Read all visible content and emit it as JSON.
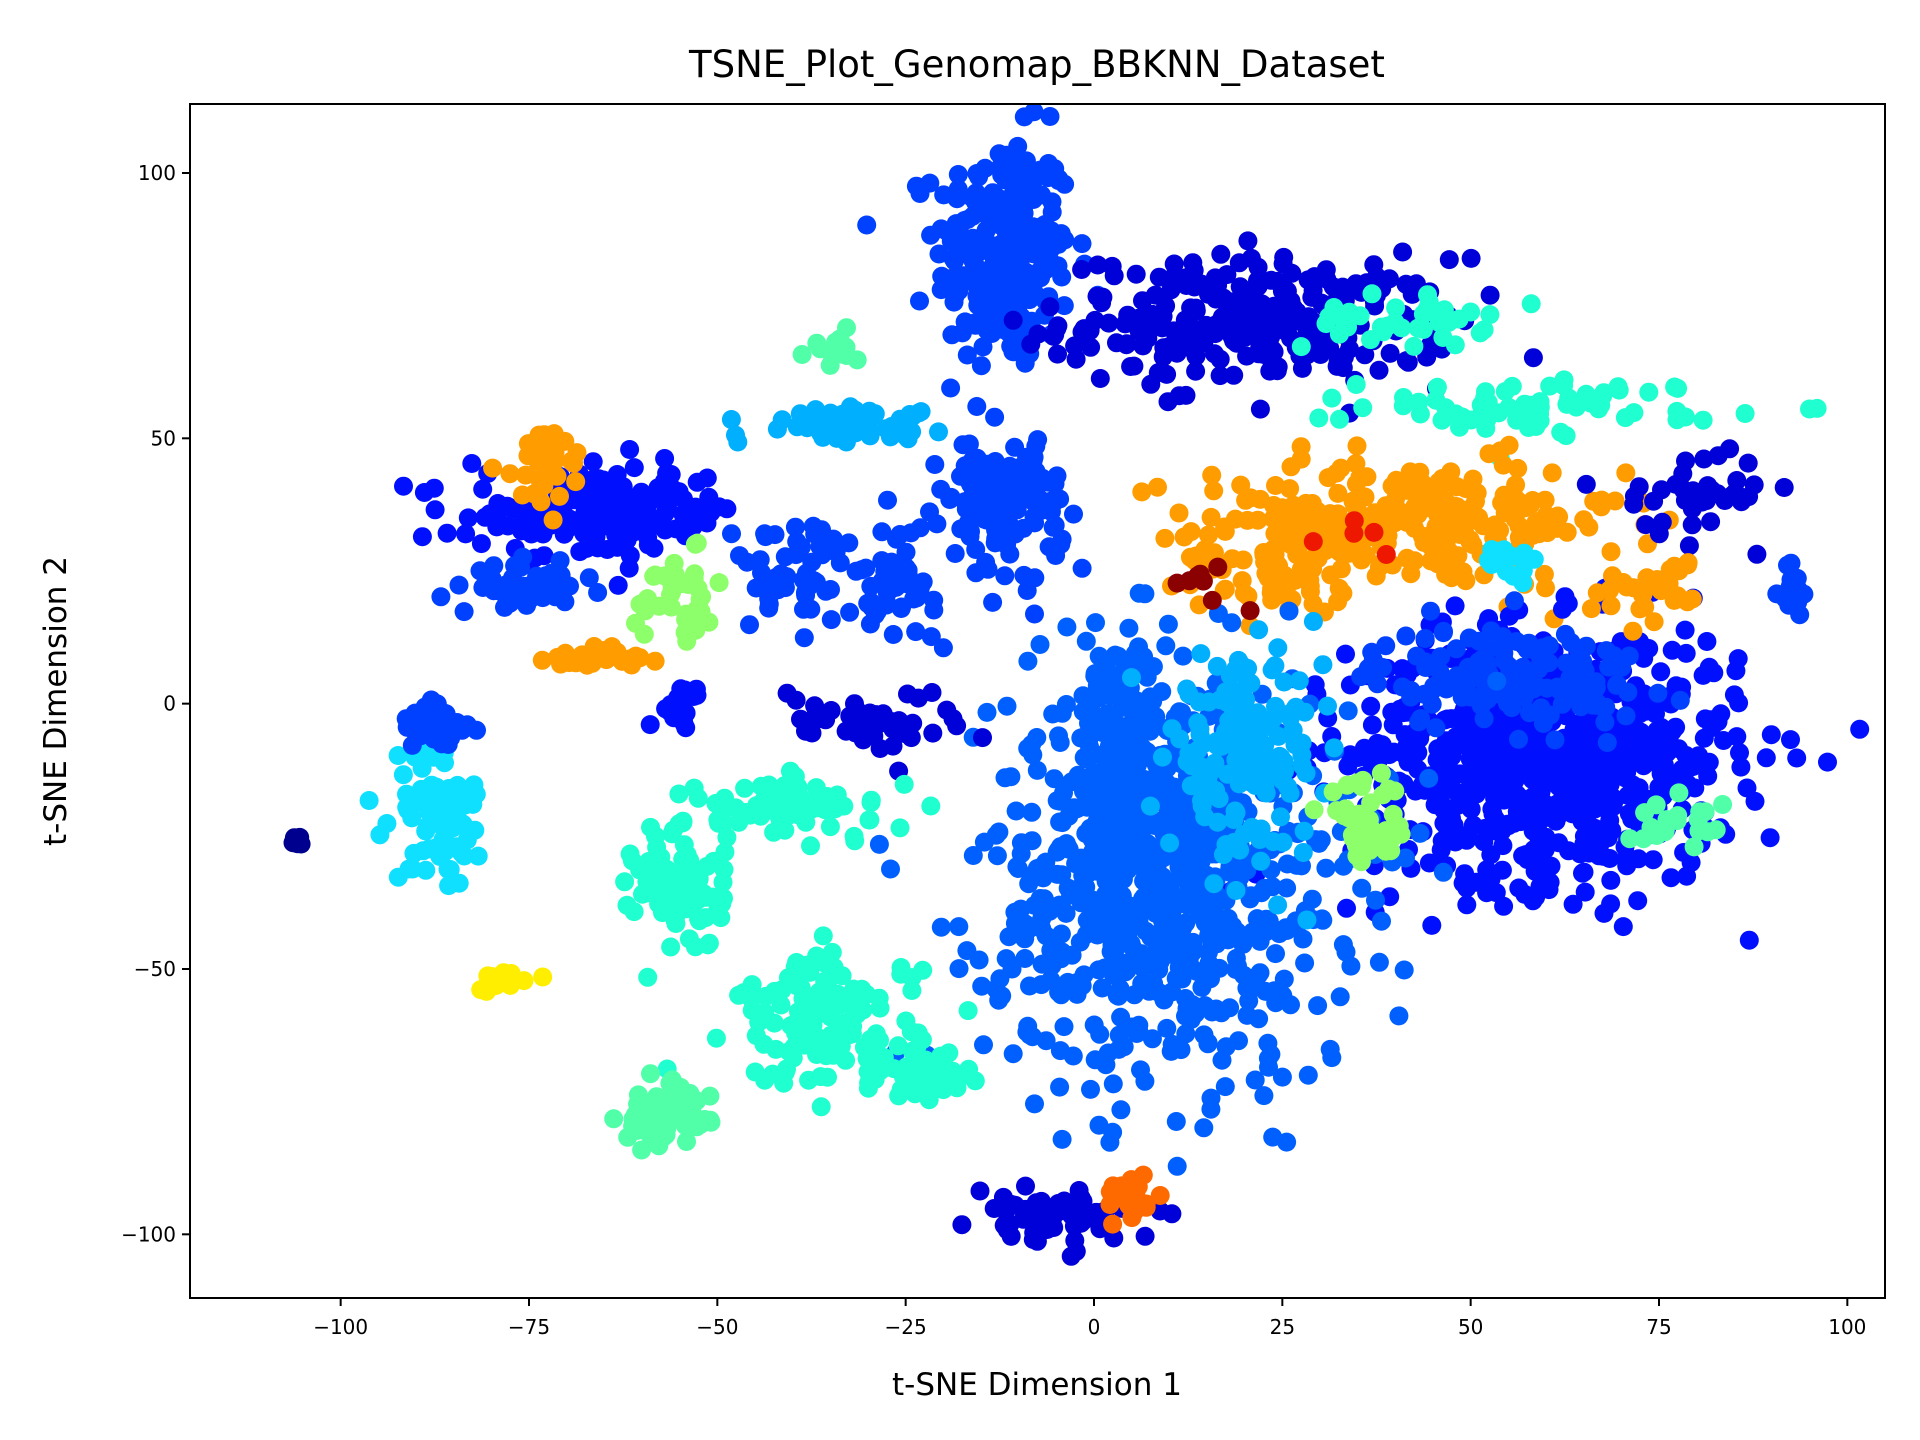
{
  "chart_data": {
    "type": "scatter",
    "title": "TSNE_Plot_Genomap_BBKNN_Dataset",
    "xlabel": "t-SNE Dimension 1",
    "ylabel": "t-SNE Dimension 2",
    "xlim": [
      -120,
      105
    ],
    "ylim": [
      -112,
      113
    ],
    "xticks": [
      -100,
      -75,
      -50,
      -25,
      0,
      25,
      50,
      75,
      100
    ],
    "yticks": [
      -100,
      -50,
      0,
      50,
      100
    ],
    "xtick_labels": [
      "−100",
      "−75",
      "−50",
      "−25",
      "0",
      "25",
      "50",
      "75",
      "100"
    ],
    "ytick_labels": [
      "−100",
      "−50",
      "0",
      "50",
      "100"
    ],
    "grid": false,
    "legend": "none",
    "colormap": "jet",
    "colors": {
      "c0": "#00008f",
      "c1": "#0000d8",
      "c2": "#0010ff",
      "c3": "#0040ff",
      "c4": "#0060ff",
      "c5": "#00b0ff",
      "c6": "#10e0ff",
      "c7": "#20ffd0",
      "c8": "#50ffa8",
      "c9": "#8cff6a",
      "c10": "#ffee00",
      "c11": "#ff9c00",
      "c12": "#ff6a00",
      "c13": "#ee1800",
      "c14": "#8b0000"
    },
    "clusters": [
      {
        "color": "c3",
        "x": -12,
        "y": 85,
        "sx": 4.5,
        "sy": 11,
        "n": 260
      },
      {
        "color": "c1",
        "x": 22,
        "y": 72,
        "sx": 13,
        "sy": 6,
        "n": 280
      },
      {
        "color": "c7",
        "x": 40,
        "y": 72,
        "sx": 6,
        "sy": 2.5,
        "n": 40
      },
      {
        "color": "c7",
        "x": 60,
        "y": 56,
        "sx": 12,
        "sy": 2.5,
        "n": 70
      },
      {
        "color": "c11",
        "x": 42,
        "y": 34,
        "sx": 14,
        "sy": 6,
        "n": 230
      },
      {
        "color": "c11",
        "x": 25,
        "y": 28,
        "sx": 6,
        "sy": 6,
        "n": 90
      },
      {
        "color": "c2",
        "x": 60,
        "y": -10,
        "sx": 13,
        "sy": 12,
        "n": 750
      },
      {
        "color": "c3",
        "x": 55,
        "y": 5,
        "sx": 9,
        "sy": 5,
        "n": 150
      },
      {
        "color": "c4",
        "x": 10,
        "y": -35,
        "sx": 12,
        "sy": 18,
        "n": 700
      },
      {
        "color": "c4",
        "x": 5,
        "y": -10,
        "sx": 6,
        "sy": 12,
        "n": 200
      },
      {
        "color": "c5",
        "x": 20,
        "y": -10,
        "sx": 5,
        "sy": 9,
        "n": 160
      },
      {
        "color": "c9",
        "x": 36,
        "y": -23,
        "sx": 3,
        "sy": 4,
        "n": 40
      },
      {
        "color": "c2",
        "x": -65,
        "y": 36,
        "sx": 9,
        "sy": 4,
        "n": 170
      },
      {
        "color": "c11",
        "x": -73,
        "y": 45,
        "sx": 3,
        "sy": 4,
        "n": 30
      },
      {
        "color": "c3",
        "x": -75,
        "y": 22,
        "sx": 3.5,
        "sy": 2,
        "n": 60
      },
      {
        "color": "c3",
        "x": -12,
        "y": 38,
        "sx": 4,
        "sy": 6,
        "n": 140
      },
      {
        "color": "c5",
        "x": -33,
        "y": 53,
        "sx": 6,
        "sy": 1.5,
        "n": 60
      },
      {
        "color": "c8",
        "x": -35,
        "y": 67,
        "sx": 2,
        "sy": 2,
        "n": 15
      },
      {
        "color": "c1",
        "x": -30,
        "y": -3,
        "sx": 6,
        "sy": 3,
        "n": 50
      },
      {
        "color": "c7",
        "x": -40,
        "y": -20,
        "sx": 7,
        "sy": 3,
        "n": 70
      },
      {
        "color": "c7",
        "x": -55,
        "y": -35,
        "sx": 3,
        "sy": 6,
        "n": 80
      },
      {
        "color": "c7",
        "x": -35,
        "y": -60,
        "sx": 6,
        "sy": 6,
        "n": 140
      },
      {
        "color": "c7",
        "x": -22,
        "y": -70,
        "sx": 3,
        "sy": 2,
        "n": 50
      },
      {
        "color": "c8",
        "x": -57,
        "y": -78,
        "sx": 3,
        "sy": 3,
        "n": 60
      },
      {
        "color": "c1",
        "x": -6,
        "y": -97,
        "sx": 5,
        "sy": 2.5,
        "n": 70
      },
      {
        "color": "c12",
        "x": 5,
        "y": -93,
        "sx": 2,
        "sy": 2,
        "n": 25
      },
      {
        "color": "c6",
        "x": -87,
        "y": -20,
        "sx": 3,
        "sy": 7,
        "n": 80
      },
      {
        "color": "c3",
        "x": -87,
        "y": -5,
        "sx": 2.5,
        "sy": 3,
        "n": 30
      },
      {
        "color": "c10",
        "x": -78,
        "y": -52,
        "sx": 2,
        "sy": 1,
        "n": 15
      },
      {
        "color": "c11",
        "x": -65,
        "y": 8,
        "sx": 4,
        "sy": 1.5,
        "n": 25
      },
      {
        "color": "c2",
        "x": -55,
        "y": 0,
        "sx": 1.5,
        "sy": 2,
        "n": 25
      },
      {
        "color": "c3",
        "x": -40,
        "y": 25,
        "sx": 4,
        "sy": 5,
        "n": 50
      },
      {
        "color": "c3",
        "x": -27,
        "y": 23,
        "sx": 3,
        "sy": 5,
        "n": 50
      },
      {
        "color": "c9",
        "x": -55,
        "y": 20,
        "sx": 3,
        "sy": 4,
        "n": 35
      },
      {
        "color": "c1",
        "x": 80,
        "y": 40,
        "sx": 5,
        "sy": 4,
        "n": 40
      },
      {
        "color": "c11",
        "x": 75,
        "y": 22,
        "sx": 4,
        "sy": 3,
        "n": 30
      },
      {
        "color": "c3",
        "x": 93,
        "y": 22,
        "sx": 1,
        "sy": 3,
        "n": 20
      },
      {
        "color": "c6",
        "x": 55,
        "y": 27,
        "sx": 3,
        "sy": 1.5,
        "n": 15
      },
      {
        "color": "c8",
        "x": 77,
        "y": -22,
        "sx": 3,
        "sy": 2,
        "n": 20
      },
      {
        "color": "c0",
        "x": -106,
        "y": -27,
        "sx": 1,
        "sy": 1,
        "n": 5
      },
      {
        "color": "c14",
        "x": 15,
        "y": 23,
        "sx": 3,
        "sy": 2,
        "n": 8
      },
      {
        "color": "c13",
        "x": 35,
        "y": 32,
        "sx": 2,
        "sy": 2,
        "n": 5
      }
    ]
  }
}
